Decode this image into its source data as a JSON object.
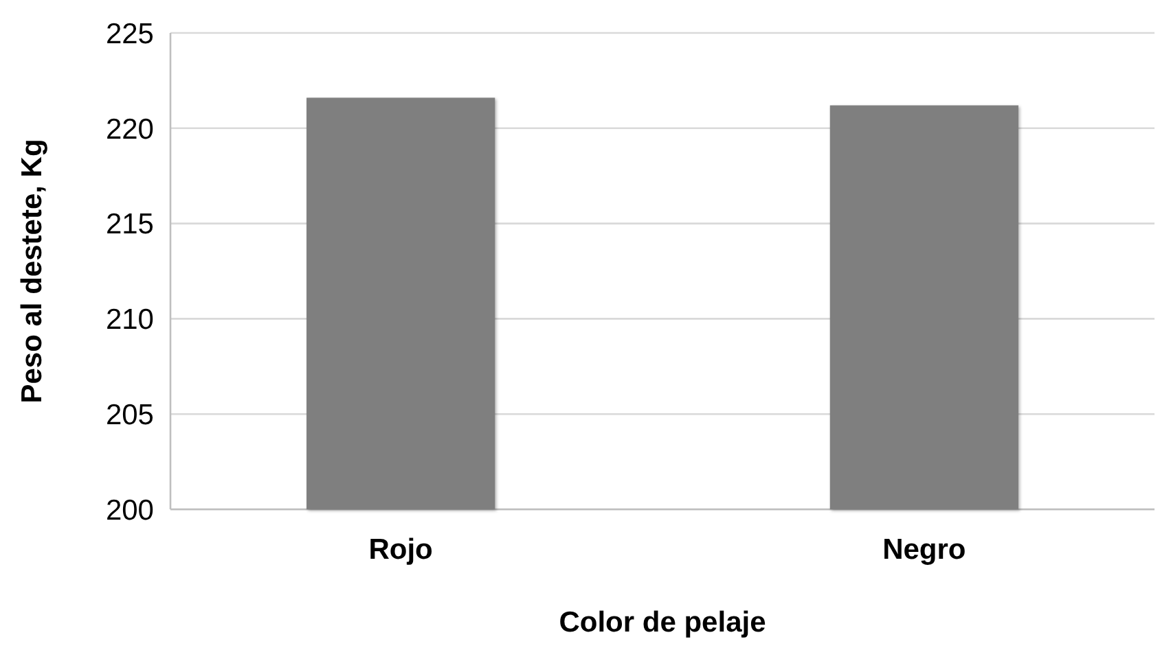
{
  "chart_data": {
    "type": "bar",
    "xlabel": "Color de pelaje",
    "ylabel": "Peso al destete, Kg",
    "categories": [
      "Rojo",
      "Negro"
    ],
    "values": [
      221.6,
      221.2
    ],
    "color": "#7f7f7f",
    "ylim": [
      200,
      225
    ],
    "yticks": [
      200,
      205,
      210,
      215,
      220,
      225
    ],
    "grid": "y"
  }
}
